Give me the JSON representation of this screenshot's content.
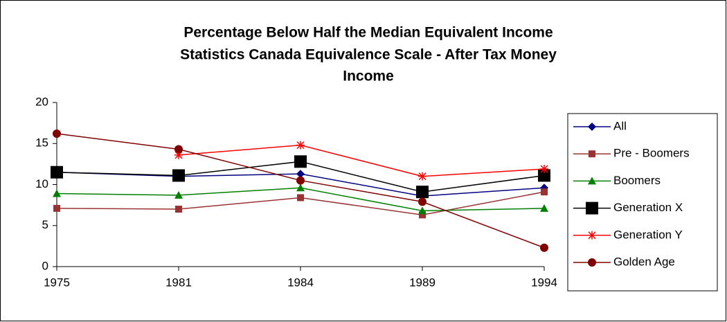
{
  "chart_data": {
    "type": "line",
    "title": [
      "Percentage Below Half the Median Equivalent Income",
      "Statistics Canada Equivalence Scale - After Tax Money",
      "Income"
    ],
    "categories": [
      "1975",
      "1981",
      "1984",
      "1989",
      "1994"
    ],
    "series": [
      {
        "name": "All",
        "color": "#000080",
        "marker": "diamond",
        "values": [
          11.5,
          11.0,
          11.3,
          8.6,
          9.6
        ]
      },
      {
        "name": "Pre - Boomers",
        "color": "#993333",
        "marker": "square",
        "values": [
          7.1,
          7.0,
          8.4,
          6.3,
          9.1
        ]
      },
      {
        "name": "Boomers",
        "color": "#008000",
        "marker": "triangle",
        "values": [
          8.9,
          8.7,
          9.6,
          6.8,
          7.1
        ]
      },
      {
        "name": "Generation X",
        "color": "#000000",
        "marker": "bigsquare",
        "values": [
          11.5,
          11.1,
          12.8,
          9.1,
          11.1
        ]
      },
      {
        "name": "Generation Y",
        "color": "#ff0000",
        "marker": "star",
        "values": [
          null,
          13.6,
          14.8,
          11.0,
          11.9
        ]
      },
      {
        "name": "Golden Age",
        "color": "#800000",
        "marker": "circle",
        "values": [
          16.2,
          14.3,
          10.5,
          7.9,
          2.3
        ]
      }
    ],
    "ylim": [
      0,
      20
    ],
    "yticks": [
      0,
      5,
      10,
      15,
      20
    ],
    "grid": false,
    "legend": "right"
  }
}
